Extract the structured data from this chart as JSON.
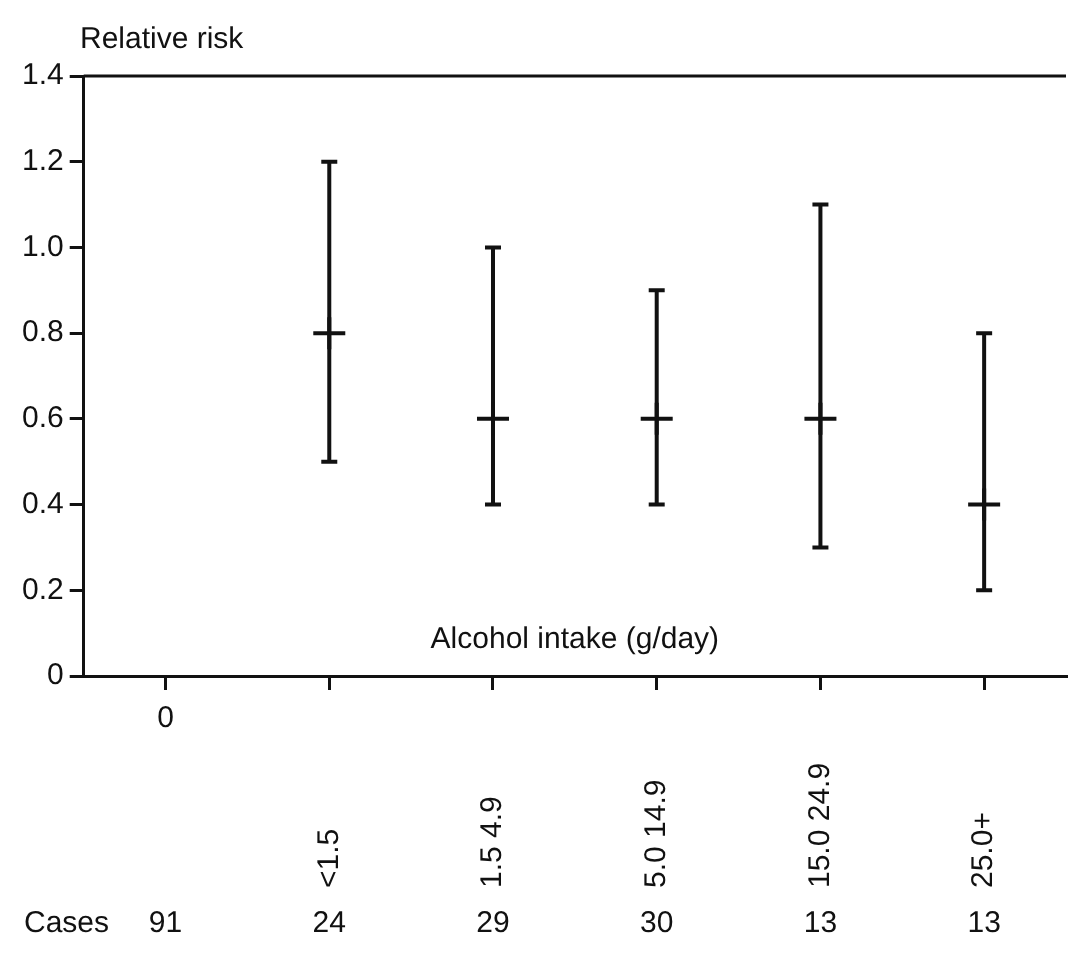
{
  "chart_data": {
    "type": "scatter",
    "ylabel": "Relative risk",
    "xlabel": "Alcohol intake (g/day)",
    "categories": [
      "0",
      "<1.5",
      "1.5 4.9",
      "5.0 14.9",
      "15.0 24.9",
      "25.0+"
    ],
    "values": [
      null,
      0.8,
      0.6,
      0.6,
      0.6,
      0.4
    ],
    "errors": [
      null,
      [
        0.5,
        1.2
      ],
      [
        0.4,
        1.0
      ],
      [
        0.4,
        0.9
      ],
      [
        0.3,
        1.1
      ],
      [
        0.2,
        0.8
      ]
    ],
    "color": "#111111",
    "marker": "cross",
    "grid": false,
    "legend": false,
    "ylim": [
      0,
      1.4
    ],
    "yticks": [
      0,
      0.2,
      0.4,
      0.6,
      0.8,
      {
        "value": 1,
        "label": "1.0"
      },
      1.2,
      1.4
    ],
    "annotations": [
      "Cases",
      "91",
      "24",
      "29",
      "30",
      "13",
      "13"
    ]
  }
}
